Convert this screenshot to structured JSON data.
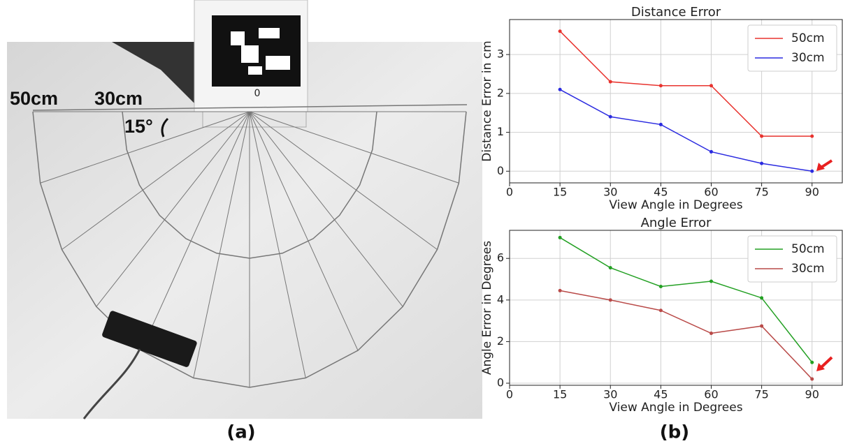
{
  "photo": {
    "radius_labels": [
      "50cm",
      "30cm"
    ],
    "angle_label": "15°",
    "marker_id": "0"
  },
  "captions": [
    "(a)",
    "(b)"
  ],
  "chart_data": [
    {
      "type": "line",
      "title": "Distance Error",
      "x_label": "View Angle in Degrees",
      "y_label": "Distance Error in cm",
      "x": [
        15,
        30,
        45,
        60,
        75,
        90
      ],
      "series": [
        {
          "name": "50cm",
          "color": "#e8332e",
          "values": [
            3.6,
            2.3,
            2.2,
            2.2,
            0.9,
            0.9
          ]
        },
        {
          "name": "30cm",
          "color": "#2b2be0",
          "values": [
            2.1,
            1.4,
            1.2,
            0.5,
            0.2,
            0.0
          ]
        }
      ],
      "xlim": [
        0,
        99
      ],
      "xticks": [
        0,
        15,
        30,
        45,
        60,
        75,
        90
      ],
      "ylim": [
        -0.3,
        3.9
      ],
      "yticks": [
        0,
        1,
        2,
        3
      ],
      "grid": true,
      "legend": "upper-right"
    },
    {
      "type": "line",
      "title": "Angle Error",
      "x_label": "View Angle in Degrees",
      "y_label": "Angle Error in Degrees",
      "x": [
        15,
        30,
        45,
        60,
        75,
        90
      ],
      "series": [
        {
          "name": "50cm",
          "color": "#23a023",
          "values": [
            7.0,
            5.55,
            4.65,
            4.9,
            4.1,
            1.0
          ]
        },
        {
          "name": "30cm",
          "color": "#b94a48",
          "values": [
            4.45,
            4.0,
            3.5,
            2.4,
            2.75,
            0.2
          ]
        }
      ],
      "xlim": [
        0,
        99
      ],
      "xticks": [
        0,
        15,
        30,
        45,
        60,
        75,
        90
      ],
      "ylim": [
        -0.1,
        7.35
      ],
      "yticks": [
        0,
        2,
        4,
        6
      ],
      "grid": true,
      "legend": "upper-right"
    }
  ]
}
